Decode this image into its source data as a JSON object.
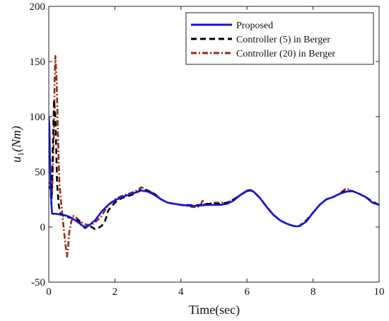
{
  "chart_data": {
    "type": "line",
    "title": "",
    "xlabel": "Time(sec)",
    "ylabel_base": "u",
    "ylabel_sub": "1",
    "ylabel_unit": "(Nm)",
    "xlim": [
      0,
      10
    ],
    "ylim": [
      -50,
      200
    ],
    "xticks": [
      0,
      2,
      4,
      6,
      8,
      10
    ],
    "yticks": [
      -50,
      0,
      50,
      100,
      150,
      200
    ],
    "grid": false,
    "legend_position": "top-right",
    "series": [
      {
        "name": "Proposed",
        "color": "#1515d6",
        "dash": "solid",
        "points": [
          [
            0,
            100
          ],
          [
            0.02,
            90
          ],
          [
            0.05,
            40
          ],
          [
            0.08,
            20
          ],
          [
            0.1,
            12
          ],
          [
            0.2,
            12
          ],
          [
            0.3,
            11.5
          ],
          [
            0.4,
            11
          ],
          [
            0.5,
            10.5
          ],
          [
            0.6,
            9.5
          ],
          [
            0.7,
            8
          ],
          [
            0.8,
            6
          ],
          [
            0.9,
            4
          ],
          [
            1.0,
            1.5
          ],
          [
            1.1,
            0
          ],
          [
            1.2,
            1
          ],
          [
            1.3,
            3.5
          ],
          [
            1.4,
            6
          ],
          [
            1.5,
            10
          ],
          [
            1.6,
            14
          ],
          [
            1.8,
            20
          ],
          [
            2.0,
            24
          ],
          [
            2.2,
            27
          ],
          [
            2.4,
            29
          ],
          [
            2.6,
            31
          ],
          [
            2.8,
            33
          ],
          [
            3.0,
            32
          ],
          [
            3.2,
            29
          ],
          [
            3.4,
            25
          ],
          [
            3.6,
            22
          ],
          [
            3.8,
            21
          ],
          [
            4.0,
            20
          ],
          [
            4.2,
            19.5
          ],
          [
            4.4,
            19
          ],
          [
            4.6,
            19.5
          ],
          [
            4.8,
            20
          ],
          [
            5.0,
            20
          ],
          [
            5.2,
            20
          ],
          [
            5.4,
            21
          ],
          [
            5.6,
            24
          ],
          [
            5.8,
            29
          ],
          [
            6.0,
            32.5
          ],
          [
            6.1,
            33
          ],
          [
            6.2,
            32
          ],
          [
            6.4,
            26
          ],
          [
            6.6,
            18
          ],
          [
            6.8,
            11
          ],
          [
            7.0,
            6
          ],
          [
            7.2,
            3
          ],
          [
            7.4,
            1
          ],
          [
            7.5,
            0.5
          ],
          [
            7.6,
            1
          ],
          [
            7.8,
            5
          ],
          [
            8.0,
            13
          ],
          [
            8.2,
            20
          ],
          [
            8.4,
            25
          ],
          [
            8.6,
            27
          ],
          [
            8.8,
            30
          ],
          [
            9.0,
            32
          ],
          [
            9.2,
            32.5
          ],
          [
            9.4,
            30
          ],
          [
            9.6,
            27
          ],
          [
            9.8,
            22
          ],
          [
            10.0,
            20
          ]
        ]
      },
      {
        "name": "Controller (5) in Berger",
        "color": "#000000",
        "dash": "dashed",
        "points": [
          [
            0,
            35
          ],
          [
            0.05,
            37
          ],
          [
            0.08,
            20
          ],
          [
            0.12,
            70
          ],
          [
            0.16,
            115
          ],
          [
            0.2,
            100
          ],
          [
            0.25,
            40
          ],
          [
            0.3,
            20
          ],
          [
            0.35,
            12
          ],
          [
            0.45,
            10
          ],
          [
            0.55,
            9
          ],
          [
            0.7,
            8
          ],
          [
            0.9,
            6
          ],
          [
            1.0,
            2
          ],
          [
            1.1,
            -1
          ],
          [
            1.2,
            1
          ],
          [
            1.3,
            0
          ],
          [
            1.4,
            -2
          ],
          [
            1.5,
            -1
          ],
          [
            1.6,
            1
          ],
          [
            1.7,
            5
          ],
          [
            1.75,
            10
          ],
          [
            1.8,
            15
          ],
          [
            2.0,
            22
          ],
          [
            2.2,
            26
          ],
          [
            2.4,
            28
          ],
          [
            2.6,
            30
          ],
          [
            2.8,
            34
          ],
          [
            3.0,
            33
          ],
          [
            3.2,
            30
          ],
          [
            3.4,
            25
          ],
          [
            3.6,
            22
          ],
          [
            3.8,
            21
          ],
          [
            4.0,
            20
          ],
          [
            4.2,
            20
          ],
          [
            4.4,
            19.5
          ],
          [
            4.6,
            20
          ],
          [
            4.8,
            21
          ],
          [
            5.0,
            21
          ],
          [
            5.2,
            21
          ],
          [
            5.4,
            22
          ],
          [
            5.6,
            25
          ],
          [
            5.8,
            29
          ],
          [
            6.0,
            33
          ],
          [
            6.1,
            33.5
          ],
          [
            6.2,
            32
          ],
          [
            6.4,
            26
          ],
          [
            6.6,
            18
          ],
          [
            6.8,
            11
          ],
          [
            7.0,
            6
          ],
          [
            7.2,
            3
          ],
          [
            7.4,
            1
          ],
          [
            7.5,
            0.5
          ],
          [
            7.6,
            1
          ],
          [
            7.7,
            4
          ],
          [
            7.8,
            6
          ],
          [
            8.0,
            13
          ],
          [
            8.2,
            20
          ],
          [
            8.4,
            25
          ],
          [
            8.6,
            27
          ],
          [
            8.8,
            30
          ],
          [
            9.0,
            33
          ],
          [
            9.2,
            32.5
          ],
          [
            9.4,
            30
          ],
          [
            9.6,
            27
          ],
          [
            9.8,
            23
          ],
          [
            10.0,
            20
          ]
        ]
      },
      {
        "name": "Controller (20) in Berger",
        "color": "#9b2a15",
        "dash": "dashdot",
        "points": [
          [
            0,
            40
          ],
          [
            0.05,
            40
          ],
          [
            0.1,
            30
          ],
          [
            0.15,
            80
          ],
          [
            0.18,
            140
          ],
          [
            0.2,
            155
          ],
          [
            0.24,
            130
          ],
          [
            0.28,
            80
          ],
          [
            0.32,
            40
          ],
          [
            0.38,
            20
          ],
          [
            0.44,
            2
          ],
          [
            0.5,
            -15
          ],
          [
            0.55,
            -27
          ],
          [
            0.58,
            -20
          ],
          [
            0.62,
            -5
          ],
          [
            0.68,
            5
          ],
          [
            0.75,
            10
          ],
          [
            0.85,
            8
          ],
          [
            0.95,
            5
          ],
          [
            1.05,
            3
          ],
          [
            1.15,
            2
          ],
          [
            1.25,
            2
          ],
          [
            1.35,
            3
          ],
          [
            1.5,
            7
          ],
          [
            1.6,
            10
          ],
          [
            1.8,
            20
          ],
          [
            2.0,
            25
          ],
          [
            2.2,
            28
          ],
          [
            2.4,
            30
          ],
          [
            2.6,
            32
          ],
          [
            2.8,
            36
          ],
          [
            3.0,
            33
          ],
          [
            3.2,
            30
          ],
          [
            3.4,
            25
          ],
          [
            3.6,
            22
          ],
          [
            3.8,
            21
          ],
          [
            4.0,
            20
          ],
          [
            4.2,
            19
          ],
          [
            4.4,
            18
          ],
          [
            4.6,
            18.5
          ],
          [
            4.65,
            25
          ],
          [
            4.7,
            20
          ],
          [
            4.8,
            21
          ],
          [
            5.0,
            22
          ],
          [
            5.2,
            22
          ],
          [
            5.4,
            22
          ],
          [
            5.6,
            25
          ],
          [
            5.8,
            29
          ],
          [
            6.0,
            33
          ],
          [
            6.1,
            33.5
          ],
          [
            6.2,
            32
          ],
          [
            6.4,
            26
          ],
          [
            6.6,
            18
          ],
          [
            6.8,
            11
          ],
          [
            7.0,
            6
          ],
          [
            7.2,
            3
          ],
          [
            7.4,
            1
          ],
          [
            7.5,
            0.5
          ],
          [
            7.6,
            1
          ],
          [
            7.8,
            5
          ],
          [
            8.0,
            13
          ],
          [
            8.2,
            20
          ],
          [
            8.4,
            25
          ],
          [
            8.6,
            27
          ],
          [
            8.8,
            30
          ],
          [
            9.0,
            35
          ],
          [
            9.2,
            32.5
          ],
          [
            9.4,
            30
          ],
          [
            9.6,
            27
          ],
          [
            9.8,
            22
          ],
          [
            10.0,
            20
          ]
        ]
      }
    ]
  }
}
